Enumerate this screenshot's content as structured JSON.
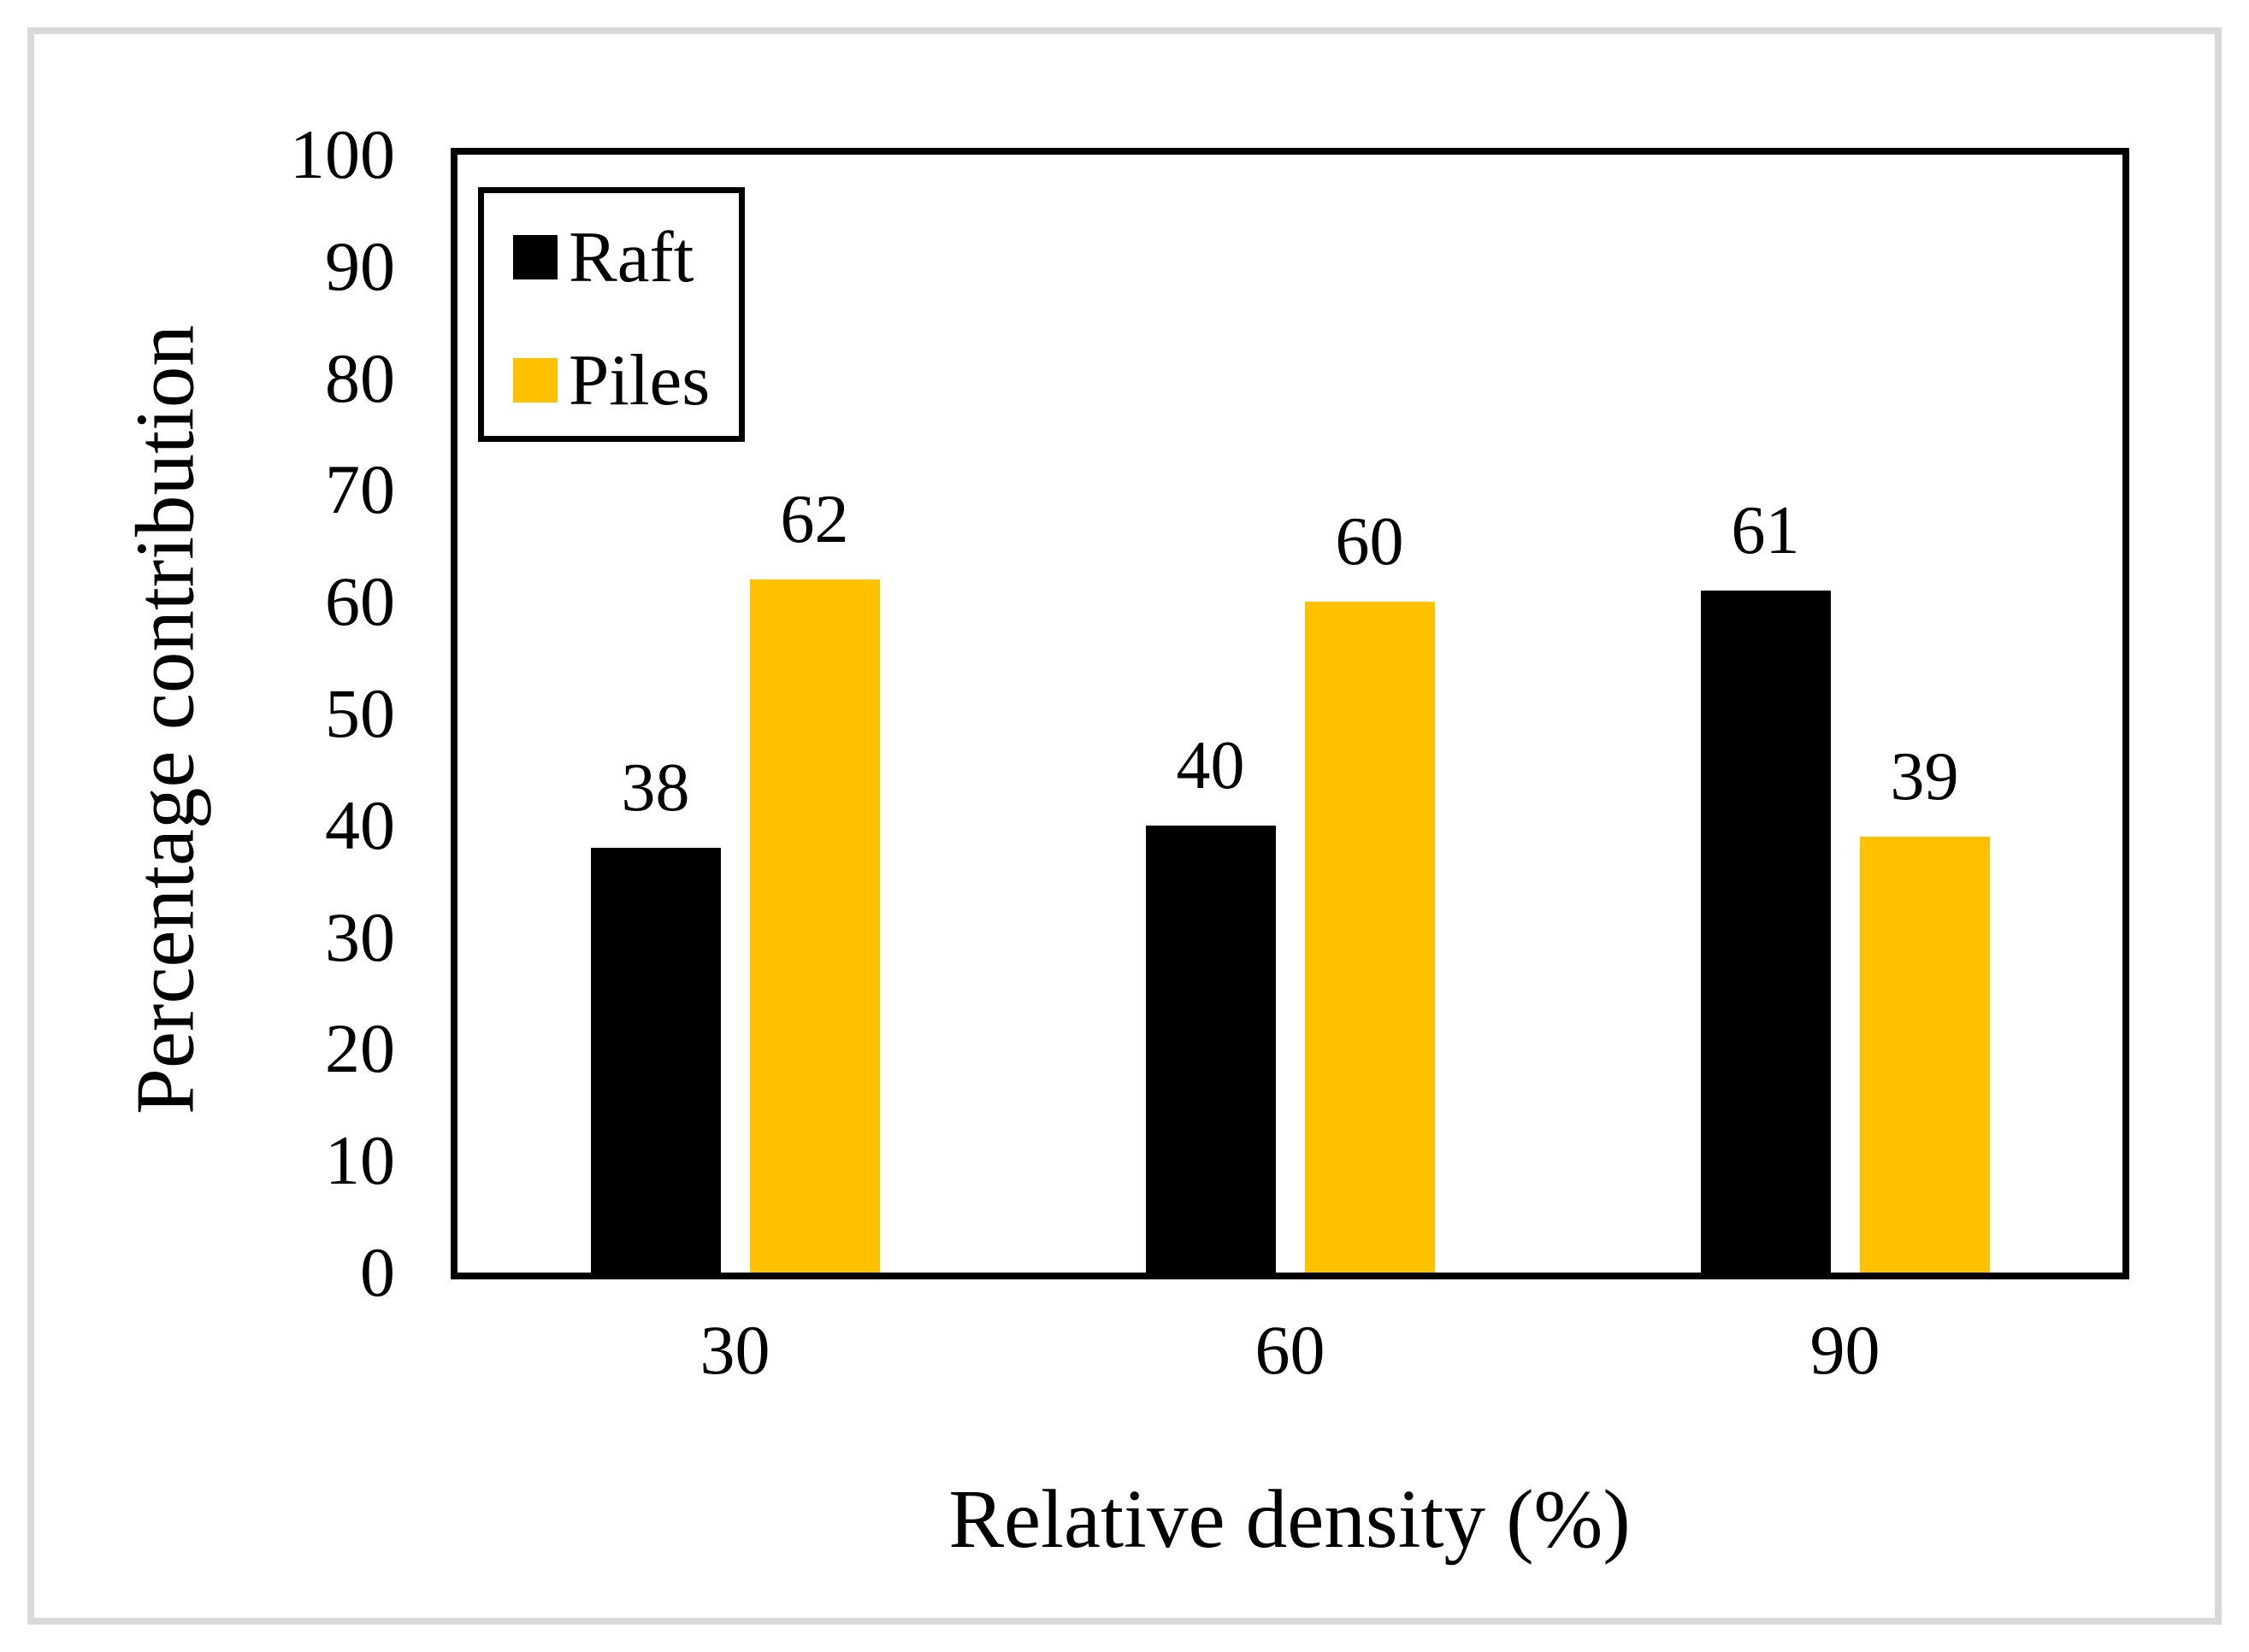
{
  "chart_data": {
    "type": "bar",
    "title": "",
    "categories": [
      "30",
      "60",
      "90"
    ],
    "series": [
      {
        "name": "Raft",
        "color": "#000000",
        "values": [
          38,
          40,
          61
        ]
      },
      {
        "name": "Piles",
        "color": "#FFC000",
        "values": [
          62,
          60,
          39
        ]
      }
    ],
    "xlabel": "Relative density (%)",
    "ylabel": "Percentage contribution",
    "ylim": [
      0,
      100
    ],
    "yticks": [
      0,
      10,
      20,
      30,
      40,
      50,
      60,
      70,
      80,
      90,
      100
    ],
    "grid": false,
    "legend_position": "top-left-inside",
    "value_labels": true
  },
  "colors": {
    "bar_raft": "#000000",
    "bar_piles": "#FFC000",
    "axis": "#000000",
    "page_frame": "#D9D9D9",
    "background": "#FFFFFF",
    "text": "#000000"
  }
}
